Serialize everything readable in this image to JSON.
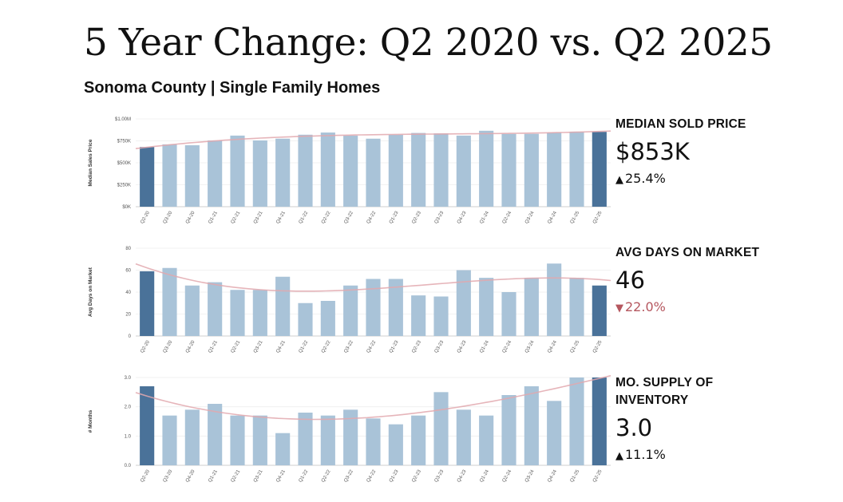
{
  "header": {
    "title": "5 Year Change: Q2 2020 vs. Q2 2025",
    "subtitle": "Sonoma County | Single Family Homes"
  },
  "colors": {
    "bar_light": "#a9c3d8",
    "bar_dark": "#4a7299",
    "trend_line": "#e2a8ae",
    "gridline": "#eeeeee",
    "negative_change": "#b5575f"
  },
  "kpis": [
    {
      "label": "MEDIAN SOLD PRICE",
      "value": "$853K",
      "change": "25.4%",
      "direction": "up",
      "arrow": "▲"
    },
    {
      "label": "AVG DAYS ON MARKET",
      "value": "46",
      "change": "22.0%",
      "direction": "down",
      "arrow": "▼"
    },
    {
      "label": "MO. SUPPLY OF INVENTORY",
      "value": "3.0",
      "change": "11.1%",
      "direction": "up",
      "arrow": "▲"
    }
  ],
  "chart_data": [
    {
      "type": "bar",
      "title": "Median Sold Price",
      "xlabel": "",
      "ylabel": "Median Sales Price",
      "categories": [
        "Q2-20",
        "Q3-20",
        "Q4-20",
        "Q1-21",
        "Q2-21",
        "Q3-21",
        "Q4-21",
        "Q1-22",
        "Q2-22",
        "Q3-22",
        "Q4-22",
        "Q1-23",
        "Q2-23",
        "Q3-23",
        "Q4-23",
        "Q1-24",
        "Q2-24",
        "Q3-24",
        "Q4-24",
        "Q1-25",
        "Q2-25"
      ],
      "values": [
        680,
        710,
        700,
        755,
        810,
        755,
        775,
        820,
        845,
        810,
        775,
        820,
        840,
        835,
        810,
        865,
        830,
        830,
        845,
        855,
        853
      ],
      "units": "thousands USD",
      "ylim": [
        0,
        1000
      ],
      "yticks": [
        0,
        250,
        500,
        750,
        1000
      ],
      "ytick_labels": [
        "$0K",
        "$250K",
        "$500K",
        "$750K",
        "$1.00M"
      ],
      "highlighted": [
        "Q2-20",
        "Q2-25"
      ],
      "trendline": "polynomial",
      "grid": true
    },
    {
      "type": "bar",
      "title": "Avg Days on Market",
      "xlabel": "",
      "ylabel": "Avg Days on Market",
      "categories": [
        "Q2-20",
        "Q3-20",
        "Q4-20",
        "Q1-21",
        "Q2-21",
        "Q3-21",
        "Q4-21",
        "Q1-22",
        "Q2-22",
        "Q3-22",
        "Q4-22",
        "Q1-23",
        "Q2-23",
        "Q3-23",
        "Q4-23",
        "Q1-24",
        "Q2-24",
        "Q3-24",
        "Q4-24",
        "Q1-25",
        "Q2-25"
      ],
      "values": [
        59,
        62,
        46,
        49,
        42,
        42,
        54,
        30,
        32,
        46,
        52,
        52,
        37,
        36,
        60,
        53,
        40,
        53,
        66,
        53,
        46
      ],
      "ylim": [
        0,
        80
      ],
      "yticks": [
        0,
        20,
        40,
        60,
        80
      ],
      "ytick_labels": [
        "0",
        "20",
        "40",
        "60",
        "80"
      ],
      "highlighted": [
        "Q2-20",
        "Q2-25"
      ],
      "trendline": "polynomial",
      "grid": true
    },
    {
      "type": "bar",
      "title": "Mo. Supply of Inventory",
      "xlabel": "",
      "ylabel": "# Months",
      "categories": [
        "Q2-20",
        "Q3-20",
        "Q4-20",
        "Q1-21",
        "Q2-21",
        "Q3-21",
        "Q4-21",
        "Q1-22",
        "Q2-22",
        "Q3-22",
        "Q4-22",
        "Q1-23",
        "Q2-23",
        "Q3-23",
        "Q4-23",
        "Q1-24",
        "Q2-24",
        "Q3-24",
        "Q4-24",
        "Q1-25",
        "Q2-25"
      ],
      "values": [
        2.7,
        1.7,
        1.9,
        2.1,
        1.7,
        1.7,
        1.1,
        1.8,
        1.7,
        1.9,
        1.6,
        1.4,
        1.7,
        2.5,
        1.9,
        1.7,
        2.4,
        2.7,
        2.2,
        3.0,
        3.0
      ],
      "ylim": [
        0,
        3
      ],
      "yticks": [
        0,
        1,
        2,
        3
      ],
      "ytick_labels": [
        "0.0",
        "1.0",
        "2.0",
        "3.0"
      ],
      "highlighted": [
        "Q2-20",
        "Q2-25"
      ],
      "trendline": "polynomial",
      "grid": true
    }
  ]
}
